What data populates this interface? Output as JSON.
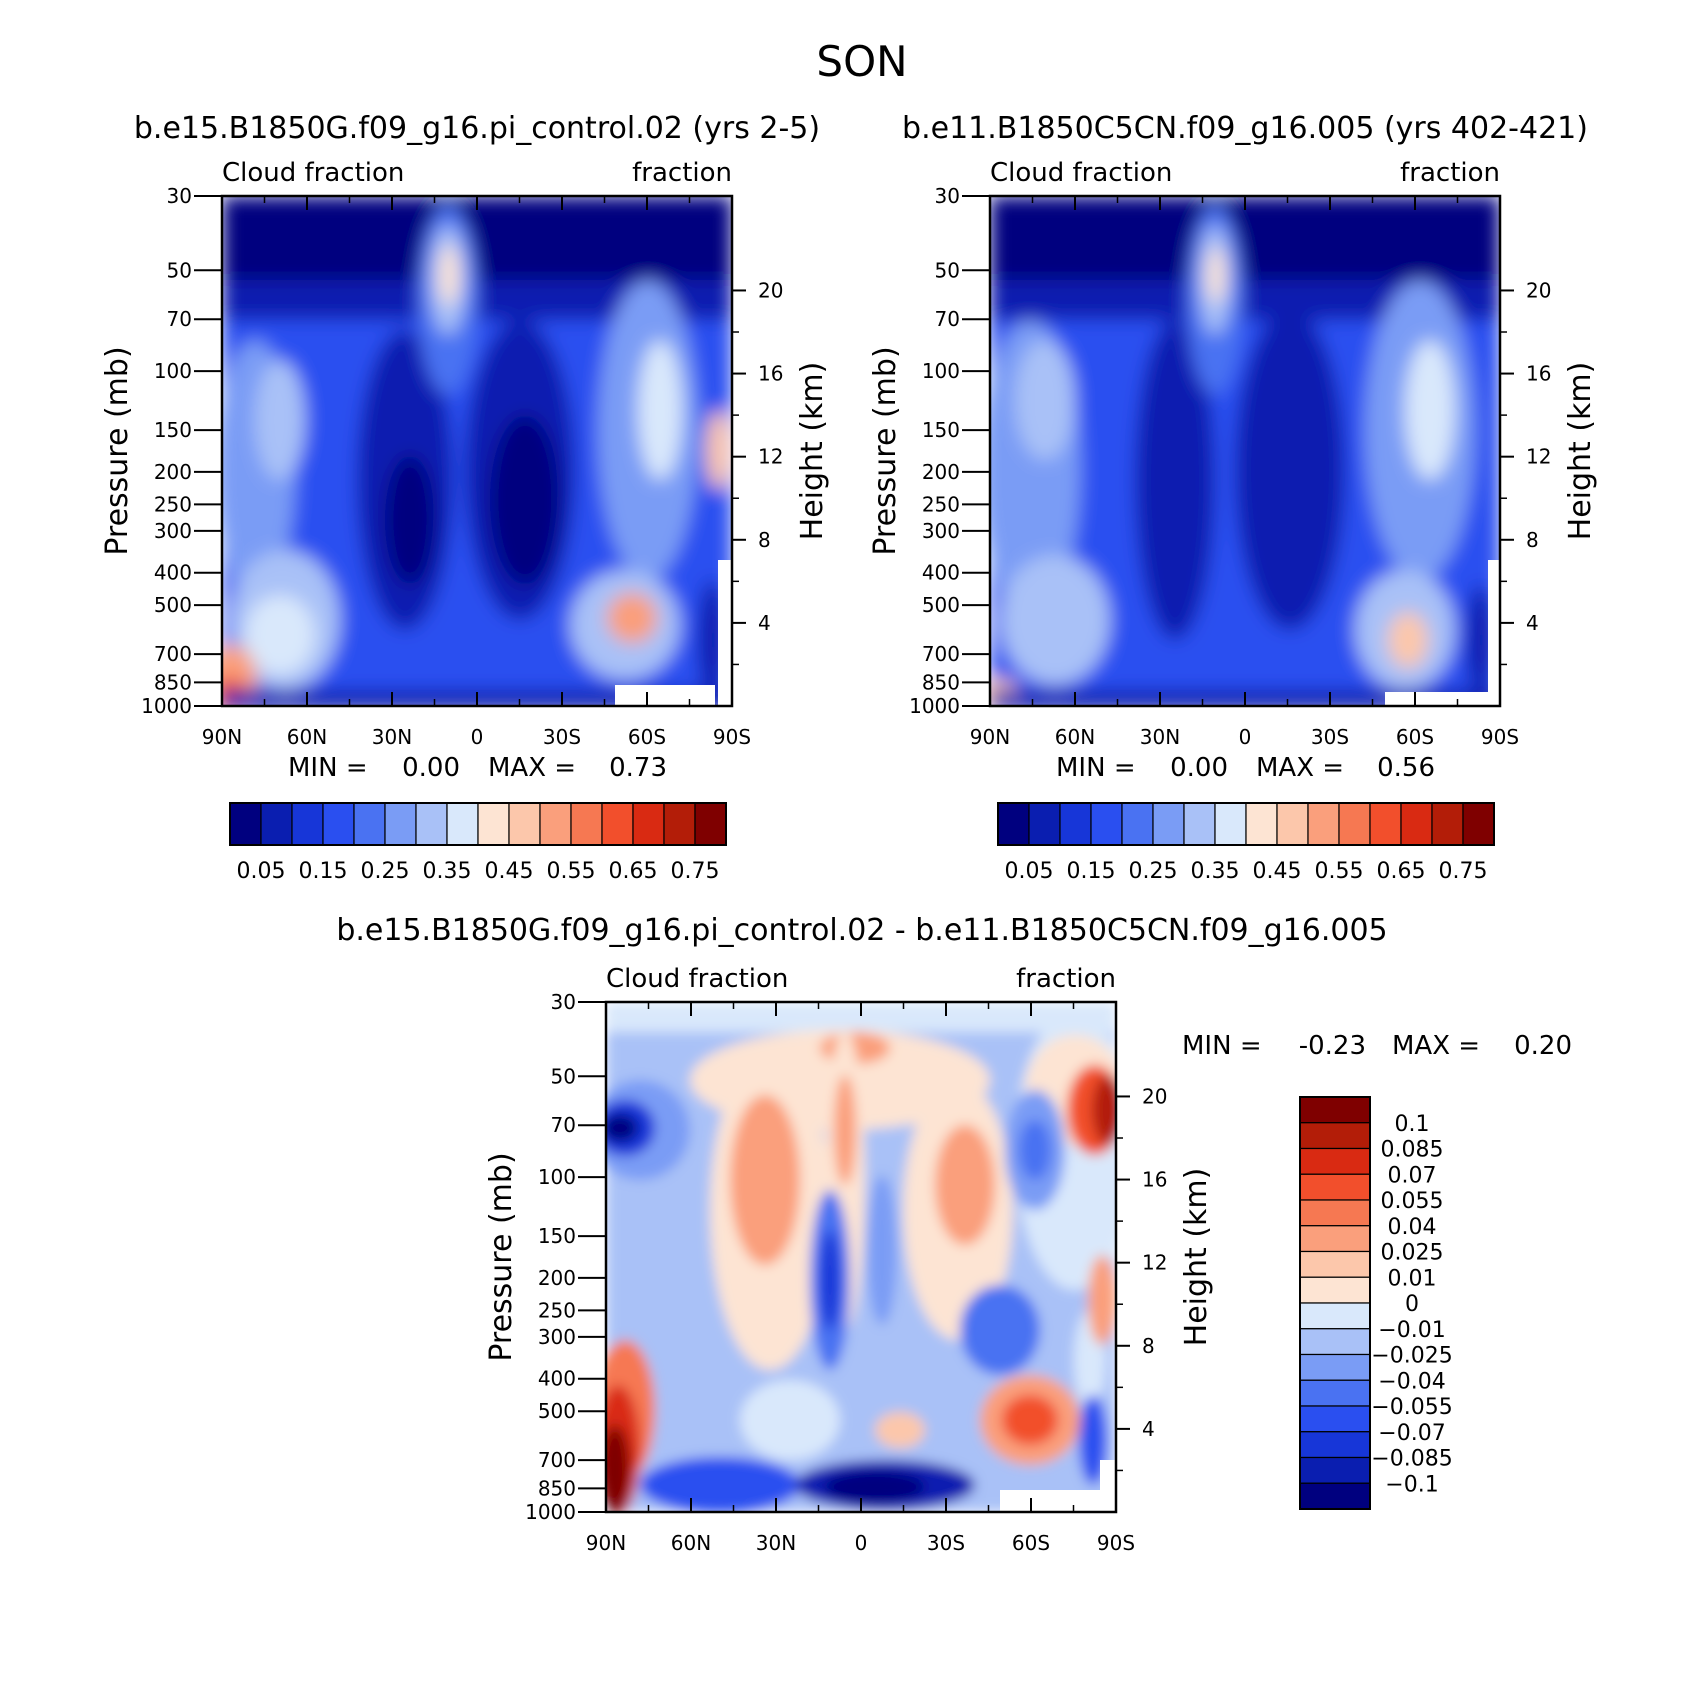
{
  "page": {
    "season": "SON"
  },
  "colormap_main": [
    "#00007f",
    "#0a1eb0",
    "#1736d8",
    "#2a4ff0",
    "#4a72f2",
    "#7a9cf5",
    "#a9c1f7",
    "#d9e8fb",
    "#fde4d3",
    "#fcc7ab",
    "#fa9f7c",
    "#f67852",
    "#f24f2c",
    "#d92a12",
    "#b31d08",
    "#7f0000"
  ],
  "colormap_diff": [
    "#00007f",
    "#0a1eb0",
    "#1736d8",
    "#2a4ff0",
    "#4a72f2",
    "#7a9cf5",
    "#a9c1f7",
    "#d9e8fb",
    "#fde4d3",
    "#fcc7ab",
    "#fa9f7c",
    "#f67852",
    "#f24f2c",
    "#d92a12",
    "#b31d08",
    "#7f0000"
  ],
  "chart_data": [
    {
      "type": "heatmap",
      "title": "b.e15.B1850G.f09_g16.pi_control.02 (yrs 2-5)",
      "left_label": "Cloud fraction",
      "right_label": "fraction",
      "ylabel": "Pressure (mb)",
      "ylabel_right": "Height (km)",
      "x_ticks": [
        "90N",
        "60N",
        "30N",
        "0",
        "30S",
        "60S",
        "90S"
      ],
      "y_ticks": [
        "30",
        "50",
        "70",
        "100",
        "150",
        "200",
        "250",
        "300",
        "400",
        "500",
        "700",
        "850",
        "1000"
      ],
      "y_ticks_right": [
        "20",
        "16",
        "12",
        "8",
        "4"
      ],
      "xlim": [
        -90,
        90
      ],
      "ylim": [
        30,
        1000
      ],
      "y_scale": "log",
      "min_label": "MIN =",
      "min_value": "0.00",
      "max_label": "MAX =",
      "max_value": "0.73",
      "colorbar_labels": [
        "0.05",
        "0.15",
        "0.25",
        "0.35",
        "0.45",
        "0.55",
        "0.65",
        "0.75"
      ]
    },
    {
      "type": "heatmap",
      "title": "b.e11.B1850C5CN.f09_g16.005 (yrs 402-421)",
      "left_label": "Cloud fraction",
      "right_label": "fraction",
      "ylabel": "Pressure (mb)",
      "ylabel_right": "Height (km)",
      "x_ticks": [
        "90N",
        "60N",
        "30N",
        "0",
        "30S",
        "60S",
        "90S"
      ],
      "y_ticks": [
        "30",
        "50",
        "70",
        "100",
        "150",
        "200",
        "250",
        "300",
        "400",
        "500",
        "700",
        "850",
        "1000"
      ],
      "y_ticks_right": [
        "20",
        "16",
        "12",
        "8",
        "4"
      ],
      "xlim": [
        -90,
        90
      ],
      "ylim": [
        30,
        1000
      ],
      "y_scale": "log",
      "min_label": "MIN =",
      "min_value": "0.00",
      "max_label": "MAX =",
      "max_value": "0.56",
      "colorbar_labels": [
        "0.05",
        "0.15",
        "0.25",
        "0.35",
        "0.45",
        "0.55",
        "0.65",
        "0.75"
      ]
    },
    {
      "type": "heatmap",
      "title": "b.e15.B1850G.f09_g16.pi_control.02 - b.e11.B1850C5CN.f09_g16.005",
      "left_label": "Cloud fraction",
      "right_label": "fraction",
      "ylabel": "Pressure (mb)",
      "ylabel_right": "Height (km)",
      "x_ticks": [
        "90N",
        "60N",
        "30N",
        "0",
        "30S",
        "60S",
        "90S"
      ],
      "y_ticks": [
        "30",
        "50",
        "70",
        "100",
        "150",
        "200",
        "250",
        "300",
        "400",
        "500",
        "700",
        "850",
        "1000"
      ],
      "y_ticks_right": [
        "20",
        "16",
        "12",
        "8",
        "4"
      ],
      "xlim": [
        -90,
        90
      ],
      "ylim": [
        30,
        1000
      ],
      "y_scale": "log",
      "min_label": "MIN =",
      "min_value": "-0.23",
      "max_label": "MAX =",
      "max_value": "0.20",
      "colorbar_labels": [
        "0.1",
        "0.085",
        "0.07",
        "0.055",
        "0.04",
        "0.025",
        "0.01",
        "0",
        "-0.01",
        "-0.025",
        "-0.04",
        "-0.055",
        "-0.07",
        "-0.085",
        "-0.1"
      ]
    }
  ]
}
